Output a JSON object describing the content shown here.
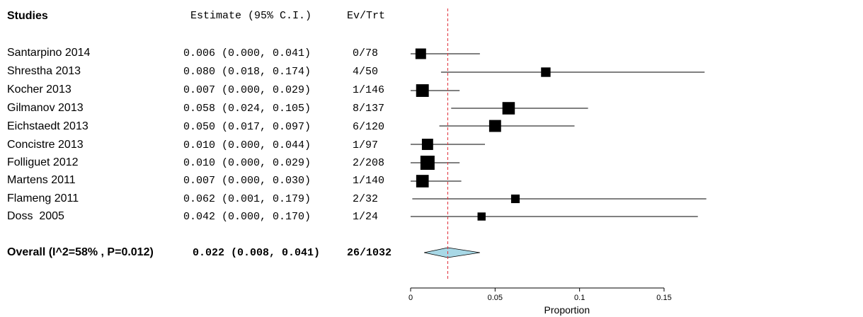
{
  "headers": {
    "studies": "Studies",
    "estimate": "Estimate (95% C.I.)",
    "ev_trt": "Ev/Trt"
  },
  "rows": [
    {
      "name": "Santarpino 2014",
      "estimate_text": "0.006 (0.000, 0.041)",
      "ev": "0/78"
    },
    {
      "name": "Shrestha 2013",
      "estimate_text": "0.080 (0.018, 0.174)",
      "ev": "4/50"
    },
    {
      "name": "Kocher 2013",
      "estimate_text": "0.007 (0.000, 0.029)",
      "ev": "1/146"
    },
    {
      "name": "Gilmanov 2013",
      "estimate_text": "0.058 (0.024, 0.105)",
      "ev": "8/137"
    },
    {
      "name": "Eichstaedt 2013",
      "estimate_text": "0.050 (0.017, 0.097)",
      "ev": "6/120"
    },
    {
      "name": "Concistre 2013",
      "estimate_text": "0.010 (0.000, 0.044)",
      "ev": "1/97"
    },
    {
      "name": "Folliguet 2012",
      "estimate_text": "0.010 (0.000, 0.029)",
      "ev": "2/208"
    },
    {
      "name": "Martens 2011",
      "estimate_text": "0.007 (0.000, 0.030)",
      "ev": "1/140"
    },
    {
      "name": "Flameng 2011",
      "estimate_text": "0.062 (0.001, 0.179)",
      "ev": "2/32"
    },
    {
      "name": "Doss  2005",
      "estimate_text": "0.042 (0.000, 0.170)",
      "ev": "1/24"
    }
  ],
  "overall": {
    "name": "Overall (I^2=58% , P=0.012)",
    "estimate_text": "0.022 (0.008, 0.041)",
    "ev": "26/1032"
  },
  "chart_data": {
    "type": "forest",
    "xlabel": "Proportion",
    "xlim": [
      0,
      0.175
    ],
    "x_ticks": [
      0,
      0.05,
      0.1,
      0.15
    ],
    "x_tick_labels": [
      "0",
      "0.05",
      "0.1",
      "0.15"
    ],
    "reference_line": 0.022,
    "studies": [
      {
        "name": "Santarpino 2014",
        "estimate": 0.006,
        "lower": 0.0,
        "upper": 0.041,
        "events": 0,
        "total": 78
      },
      {
        "name": "Shrestha 2013",
        "estimate": 0.08,
        "lower": 0.018,
        "upper": 0.174,
        "events": 4,
        "total": 50
      },
      {
        "name": "Kocher 2013",
        "estimate": 0.007,
        "lower": 0.0,
        "upper": 0.029,
        "events": 1,
        "total": 146
      },
      {
        "name": "Gilmanov 2013",
        "estimate": 0.058,
        "lower": 0.024,
        "upper": 0.105,
        "events": 8,
        "total": 137
      },
      {
        "name": "Eichstaedt 2013",
        "estimate": 0.05,
        "lower": 0.017,
        "upper": 0.097,
        "events": 6,
        "total": 120
      },
      {
        "name": "Concistre 2013",
        "estimate": 0.01,
        "lower": 0.0,
        "upper": 0.044,
        "events": 1,
        "total": 97
      },
      {
        "name": "Folliguet 2012",
        "estimate": 0.01,
        "lower": 0.0,
        "upper": 0.029,
        "events": 2,
        "total": 208
      },
      {
        "name": "Martens 2011",
        "estimate": 0.007,
        "lower": 0.0,
        "upper": 0.03,
        "events": 1,
        "total": 140
      },
      {
        "name": "Flameng 2011",
        "estimate": 0.062,
        "lower": 0.001,
        "upper": 0.179,
        "events": 2,
        "total": 32
      },
      {
        "name": "Doss  2005",
        "estimate": 0.042,
        "lower": 0.0,
        "upper": 0.17,
        "events": 1,
        "total": 24
      }
    ],
    "overall": {
      "estimate": 0.022,
      "lower": 0.008,
      "upper": 0.041,
      "events": 26,
      "total": 1032
    },
    "colors": {
      "reference_line": "#e0303a",
      "diamond_fill": "#a8d8e6",
      "marker": "#000000"
    }
  }
}
